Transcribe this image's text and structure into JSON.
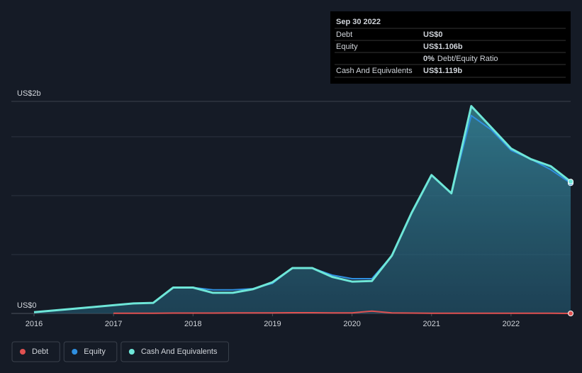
{
  "chart_data": {
    "type": "line",
    "xlim": [
      2016,
      2022.75
    ],
    "xticks": [
      2016,
      2017,
      2018,
      2019,
      2020,
      2021,
      2022
    ],
    "ylim": [
      0,
      1.8
    ],
    "yticks": [
      {
        "value": 0,
        "label": "US$0"
      },
      {
        "value": 1.8,
        "label": "US$2b"
      }
    ],
    "grid_lines": [
      0.5,
      1,
      1.5
    ],
    "x": [
      2016,
      2016.5,
      2017,
      2017.25,
      2017.5,
      2017.75,
      2018,
      2018.25,
      2018.5,
      2018.75,
      2019,
      2019.25,
      2019.5,
      2019.75,
      2020,
      2020.25,
      2020.5,
      2020.75,
      2021,
      2021.25,
      2021.5,
      2021.75,
      2022,
      2022.25,
      2022.5,
      2022.75
    ],
    "series": [
      {
        "name": "Debt",
        "color": "#e05151",
        "values": [
          null,
          null,
          0.002,
          0.002,
          0.002,
          0.003,
          0.003,
          0.003,
          0.004,
          0.004,
          0.005,
          0.006,
          0.006,
          0.005,
          0.005,
          0.02,
          0.004,
          0.003,
          0.002,
          0.002,
          0.002,
          0.002,
          0.001,
          0.001,
          0.001,
          0
        ]
      },
      {
        "name": "Equity",
        "color": "#2f8fe0",
        "values": [
          0.01,
          0.04,
          0.07,
          0.085,
          0.09,
          0.22,
          0.22,
          0.2,
          0.2,
          0.21,
          0.255,
          0.385,
          0.385,
          0.325,
          0.295,
          0.295,
          0.49,
          0.855,
          1.175,
          1.02,
          1.68,
          1.56,
          1.385,
          1.31,
          1.22,
          1.106
        ]
      },
      {
        "name": "Cash And Equivalents",
        "color": "#6ee6d8",
        "values": [
          0.01,
          0.04,
          0.07,
          0.085,
          0.09,
          0.22,
          0.22,
          0.175,
          0.175,
          0.205,
          0.265,
          0.385,
          0.385,
          0.31,
          0.27,
          0.275,
          0.49,
          0.855,
          1.175,
          1.02,
          1.76,
          1.58,
          1.4,
          1.31,
          1.25,
          1.119
        ]
      }
    ],
    "tooltip": {
      "date": "Sep 30 2022",
      "rows": [
        {
          "label": "Debt",
          "value": "US$0"
        },
        {
          "label": "Equity",
          "value": "US$1.106b"
        },
        {
          "label": "",
          "value": "0%",
          "note": "Debt/Equity Ratio"
        },
        {
          "label": "Cash And Equivalents",
          "value": "US$1.119b"
        }
      ]
    }
  }
}
